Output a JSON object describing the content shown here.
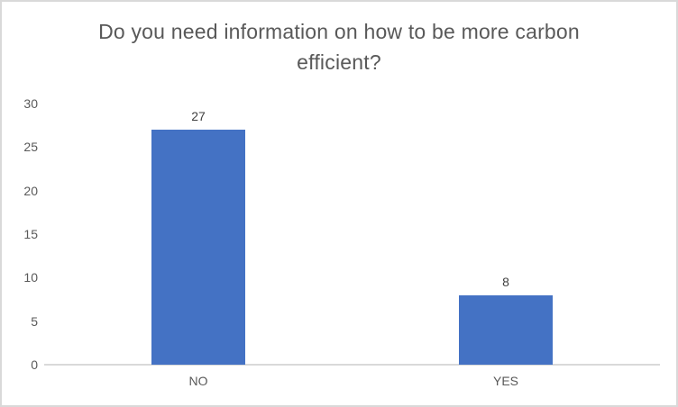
{
  "chart_data": {
    "type": "bar",
    "title": "Do you need information on how to be more carbon efficient?",
    "categories": [
      "NO",
      "YES"
    ],
    "values": [
      27,
      8
    ],
    "data_labels": [
      "27",
      "8"
    ],
    "xlabel": "",
    "ylabel": "",
    "ylim": [
      0,
      30
    ],
    "yticks": [
      0,
      5,
      10,
      15,
      20,
      25,
      30
    ],
    "grid": false,
    "legend": false
  },
  "colors": {
    "bar": "#4472C4",
    "title_text": "#595959",
    "axis_text": "#595959",
    "data_label_text": "#404040",
    "axis_line": "#D9D9D9",
    "frame_border": "#D9D9D9",
    "background": "#FFFFFF"
  }
}
